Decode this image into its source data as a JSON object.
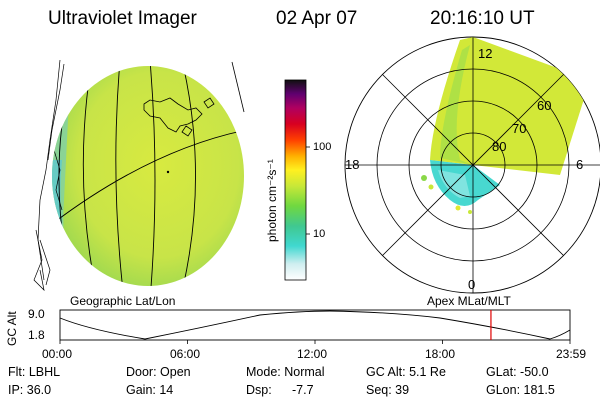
{
  "header": {
    "title": "Ultraviolet Imager",
    "date": "02 Apr 07",
    "time": "20:16:10 UT"
  },
  "colorbar": {
    "unit_label": "photon cm⁻²s⁻¹",
    "ticks": [
      "100",
      "10"
    ]
  },
  "polar_plot": {
    "mlt_labels": {
      "top": "12",
      "left": "18",
      "right": "6",
      "bottom": "0"
    },
    "lat_labels": [
      "60",
      "70",
      "80"
    ],
    "title": "Apex MLat/MLT"
  },
  "globe": {
    "title": "Geographic Lat/Lon"
  },
  "altitude_strip": {
    "axis_label": "GC Alt",
    "y_max": "9.0",
    "y_min": "1.8",
    "x_ticks": [
      "00:00",
      "06:00",
      "12:00",
      "18:00",
      "23:59"
    ],
    "current_time_fraction": 0.845
  },
  "info": {
    "filter": "Flt: LBHL",
    "door": "Door: Open",
    "mode": "Mode: Normal",
    "gc_alt": "GC Alt: 5.1 Re",
    "glat": "GLat: -50.0",
    "ip": "IP: 36.0",
    "gain": "Gain: 14",
    "dsp_label": "Dsp:",
    "dsp_value": "-7.7",
    "seq": "Seq: 39",
    "glon": "GLon: 181.5"
  },
  "colors": {
    "aurora": "#d2e838",
    "aurora_low": "#40e0c8",
    "limb_edge": "#b8d840",
    "time_marker": "#e00000"
  }
}
